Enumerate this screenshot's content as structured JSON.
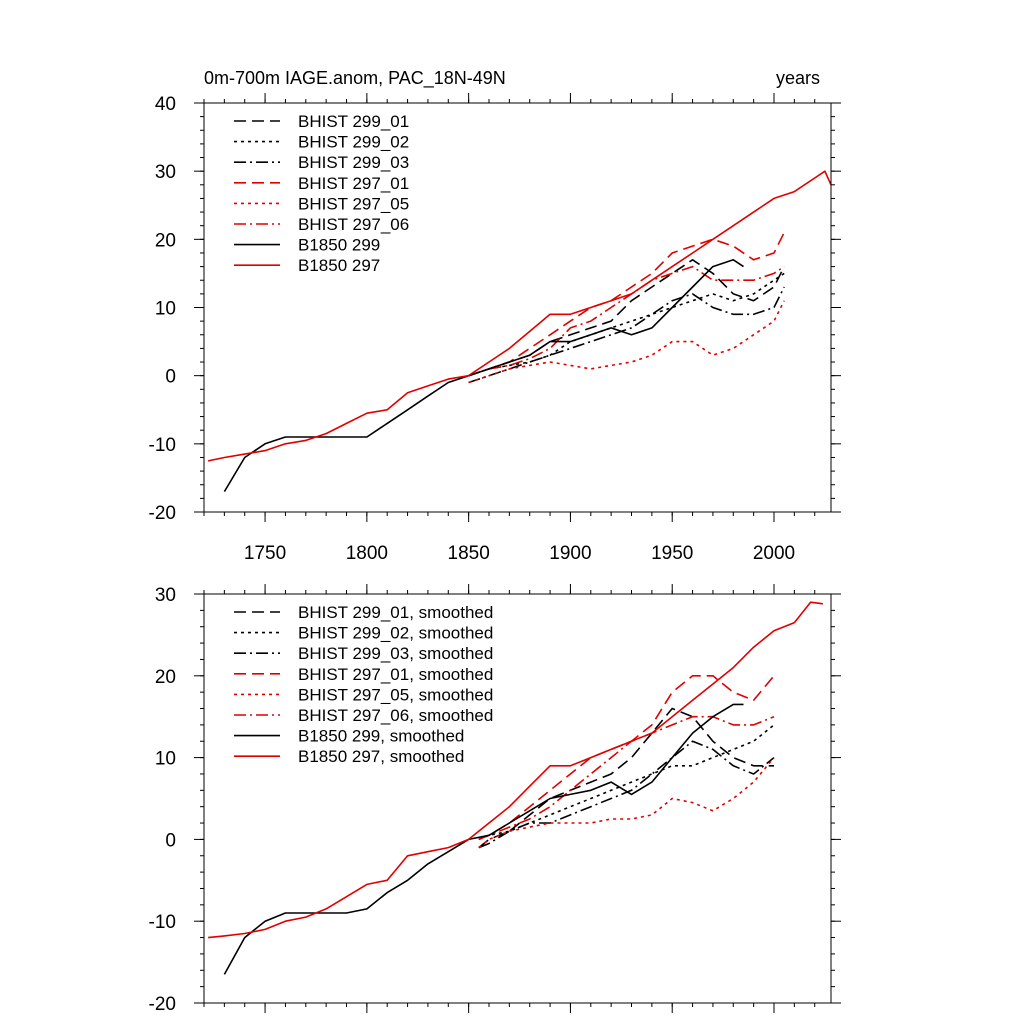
{
  "chart_data": [
    {
      "type": "line",
      "title": "0m-700m IAGE.anom, PAC_18N-49N",
      "right_title": "years",
      "xlim": [
        1720,
        2028
      ],
      "ylim": [
        -20,
        40
      ],
      "x_ticks": [
        1750,
        1800,
        1850,
        1900,
        1950,
        2000
      ],
      "x_tick_labels": [
        "1750",
        "1800",
        "1850",
        "1900",
        "1950",
        "2000"
      ],
      "y_ticks": [
        -20,
        -10,
        0,
        10,
        20,
        30,
        40
      ],
      "y_tick_labels": [
        "-20",
        "-10",
        "0",
        "10",
        "20",
        "30",
        "40"
      ],
      "legend_position": "top-left",
      "series": [
        {
          "name": "BHIST 299_01",
          "color": "#000000",
          "dash": "dashed",
          "x": [
            1850,
            1860,
            1870,
            1880,
            1890,
            1900,
            1910,
            1920,
            1930,
            1940,
            1950,
            1960,
            1970,
            1980,
            1990,
            2000,
            2005
          ],
          "y": [
            0,
            1,
            2,
            3,
            5,
            6,
            7,
            8,
            11,
            13,
            15,
            17,
            15,
            12,
            11,
            13,
            16
          ]
        },
        {
          "name": "BHIST 299_02",
          "color": "#000000",
          "dash": "dotted",
          "x": [
            1850,
            1860,
            1870,
            1880,
            1890,
            1900,
            1910,
            1920,
            1930,
            1940,
            1950,
            1960,
            1970,
            1980,
            1990,
            2000,
            2005
          ],
          "y": [
            0,
            1,
            1.5,
            2,
            3,
            5,
            6,
            7,
            8,
            9,
            10,
            11,
            12,
            11,
            12,
            14,
            15
          ]
        },
        {
          "name": "BHIST 299_03",
          "color": "#000000",
          "dash": "dashdot",
          "x": [
            1850,
            1860,
            1870,
            1880,
            1890,
            1900,
            1910,
            1920,
            1930,
            1940,
            1950,
            1960,
            1970,
            1980,
            1990,
            2000,
            2005
          ],
          "y": [
            -1,
            0,
            1,
            2,
            3,
            4,
            5,
            6,
            7,
            9,
            11,
            12,
            10,
            9,
            9,
            10,
            13
          ]
        },
        {
          "name": "BHIST 297_01",
          "color": "#e00000",
          "dash": "dashed",
          "x": [
            1850,
            1860,
            1870,
            1880,
            1890,
            1900,
            1910,
            1920,
            1930,
            1940,
            1950,
            1960,
            1970,
            1980,
            1990,
            2000,
            2005
          ],
          "y": [
            0,
            1,
            2,
            4,
            6,
            8,
            10,
            11,
            13,
            15,
            18,
            19,
            20,
            19,
            17,
            18,
            21
          ]
        },
        {
          "name": "BHIST 297_05",
          "color": "#e00000",
          "dash": "dotted",
          "x": [
            1850,
            1860,
            1870,
            1880,
            1890,
            1900,
            1910,
            1920,
            1930,
            1940,
            1950,
            1960,
            1970,
            1980,
            1990,
            2000,
            2005
          ],
          "y": [
            -1,
            0,
            1,
            1.5,
            2,
            1.5,
            1,
            1.5,
            2,
            3,
            5,
            5,
            3,
            4,
            6,
            8,
            11
          ]
        },
        {
          "name": "BHIST 297_06",
          "color": "#e00000",
          "dash": "dashdot",
          "x": [
            1850,
            1860,
            1870,
            1880,
            1890,
            1900,
            1910,
            1920,
            1930,
            1940,
            1950,
            1960,
            1970,
            1980,
            1990,
            2000,
            2005
          ],
          "y": [
            0,
            1,
            1.5,
            2.5,
            4,
            7,
            8,
            10,
            12,
            14,
            15,
            16,
            14,
            14,
            14,
            15,
            16
          ]
        },
        {
          "name": "B1850 299",
          "color": "#000000",
          "dash": "solid",
          "x": [
            1730,
            1740,
            1750,
            1760,
            1770,
            1780,
            1790,
            1800,
            1810,
            1820,
            1830,
            1840,
            1850,
            1860,
            1870,
            1880,
            1890,
            1900,
            1910,
            1920,
            1930,
            1940,
            1950,
            1960,
            1970,
            1980,
            1985
          ],
          "y": [
            -17,
            -12,
            -10,
            -9,
            -9,
            -9,
            -9,
            -9,
            -7,
            -5,
            -3,
            -1,
            0,
            1,
            2,
            3,
            5,
            5,
            6,
            7,
            6,
            7,
            10,
            13,
            16,
            17,
            16
          ]
        },
        {
          "name": "B1850 297",
          "color": "#e00000",
          "dash": "solid",
          "x": [
            1722,
            1730,
            1740,
            1750,
            1760,
            1770,
            1780,
            1790,
            1800,
            1810,
            1820,
            1830,
            1840,
            1850,
            1860,
            1870,
            1880,
            1890,
            1900,
            1910,
            1920,
            1930,
            1940,
            1950,
            1960,
            1970,
            1980,
            1990,
            2000,
            2010,
            2020,
            2025,
            2028
          ],
          "y": [
            -12.5,
            -12,
            -11.5,
            -11,
            -10,
            -9.5,
            -8.5,
            -7,
            -5.5,
            -5,
            -2.5,
            -1.5,
            -0.5,
            0,
            2,
            4,
            6.5,
            9,
            9,
            10,
            11,
            12,
            14,
            16,
            18,
            20,
            22,
            24,
            26,
            27,
            29,
            30,
            28
          ]
        }
      ]
    },
    {
      "type": "line",
      "title": "",
      "xlim": [
        1720,
        2028
      ],
      "ylim": [
        -20,
        30
      ],
      "x_ticks": [
        1750,
        1800,
        1850,
        1900,
        1950,
        2000
      ],
      "y_ticks": [
        -20,
        -10,
        0,
        10,
        20,
        30
      ],
      "y_tick_labels": [
        "-20",
        "-10",
        "0",
        "10",
        "20",
        "30"
      ],
      "legend_position": "top-left",
      "series": [
        {
          "name": "BHIST 299_01, smoothed",
          "color": "#000000",
          "dash": "dashed",
          "x": [
            1855,
            1860,
            1870,
            1880,
            1890,
            1900,
            1910,
            1920,
            1930,
            1940,
            1950,
            1960,
            1970,
            1980,
            1990,
            2000
          ],
          "y": [
            -1,
            0,
            1,
            3,
            5,
            6,
            7,
            8,
            10,
            13,
            16,
            15,
            12,
            10,
            9,
            9
          ]
        },
        {
          "name": "BHIST 299_02, smoothed",
          "color": "#000000",
          "dash": "dotted",
          "x": [
            1855,
            1860,
            1870,
            1880,
            1890,
            1900,
            1910,
            1920,
            1930,
            1940,
            1950,
            1960,
            1970,
            1980,
            1990,
            2000
          ],
          "y": [
            0,
            0.5,
            1,
            2,
            3,
            4,
            5,
            6,
            7,
            8,
            9,
            9,
            10,
            11,
            12,
            14
          ]
        },
        {
          "name": "BHIST 299_03, smoothed",
          "color": "#000000",
          "dash": "dashdot",
          "x": [
            1855,
            1860,
            1870,
            1880,
            1890,
            1900,
            1910,
            1920,
            1930,
            1940,
            1950,
            1960,
            1970,
            1980,
            1990,
            2000
          ],
          "y": [
            -1,
            -0.5,
            1,
            2,
            2,
            3,
            4,
            5,
            6,
            8,
            10,
            12,
            11,
            9,
            8,
            10
          ]
        },
        {
          "name": "BHIST 297_01, smoothed",
          "color": "#e00000",
          "dash": "dashed",
          "x": [
            1855,
            1860,
            1870,
            1880,
            1890,
            1900,
            1910,
            1920,
            1930,
            1940,
            1950,
            1960,
            1970,
            1980,
            1990,
            2000
          ],
          "y": [
            0,
            0.5,
            2,
            4,
            6,
            8,
            10,
            11,
            12,
            14,
            18,
            20,
            20,
            18,
            17,
            20
          ]
        },
        {
          "name": "BHIST 297_05, smoothed",
          "color": "#e00000",
          "dash": "dotted",
          "x": [
            1855,
            1860,
            1870,
            1880,
            1890,
            1900,
            1910,
            1920,
            1930,
            1940,
            1950,
            1960,
            1970,
            1980,
            1990,
            2000
          ],
          "y": [
            -1,
            0,
            1,
            1.5,
            2,
            2,
            2,
            2.5,
            2.5,
            3,
            5,
            4.5,
            3.5,
            5,
            7,
            10
          ]
        },
        {
          "name": "BHIST 297_06, smoothed",
          "color": "#e00000",
          "dash": "dashdot",
          "x": [
            1855,
            1860,
            1870,
            1880,
            1890,
            1900,
            1910,
            1920,
            1930,
            1940,
            1950,
            1960,
            1970,
            1980,
            1990,
            2000
          ],
          "y": [
            0,
            0.5,
            1.5,
            2.5,
            4,
            6,
            8,
            10,
            12,
            13,
            14,
            15,
            15,
            14,
            14,
            15
          ]
        },
        {
          "name": "B1850 299, smoothed",
          "color": "#000000",
          "dash": "solid",
          "x": [
            1730,
            1740,
            1750,
            1760,
            1770,
            1780,
            1790,
            1800,
            1810,
            1820,
            1830,
            1840,
            1850,
            1860,
            1870,
            1880,
            1890,
            1900,
            1910,
            1920,
            1930,
            1940,
            1950,
            1960,
            1970,
            1980,
            1985
          ],
          "y": [
            -16.5,
            -12,
            -10,
            -9,
            -9,
            -9,
            -9,
            -8.5,
            -6.5,
            -5,
            -3,
            -1.5,
            0,
            0.5,
            2,
            3.5,
            5,
            5.5,
            6,
            7,
            5.5,
            7,
            10,
            13,
            15,
            16.5,
            16.5
          ]
        },
        {
          "name": "B1850 297, smoothed",
          "color": "#e00000",
          "dash": "solid",
          "x": [
            1722,
            1730,
            1740,
            1750,
            1760,
            1770,
            1780,
            1790,
            1800,
            1810,
            1820,
            1830,
            1840,
            1850,
            1860,
            1870,
            1880,
            1890,
            1900,
            1910,
            1920,
            1930,
            1940,
            1950,
            1960,
            1970,
            1980,
            1990,
            2000,
            2010,
            2018,
            2024
          ],
          "y": [
            -12,
            -11.8,
            -11.5,
            -11,
            -10,
            -9.5,
            -8.5,
            -7,
            -5.5,
            -5,
            -2,
            -1.5,
            -1,
            0,
            2,
            4,
            6.5,
            9,
            9,
            10,
            11,
            12,
            13,
            15,
            17,
            19,
            21,
            23.5,
            25.5,
            26.5,
            29,
            28.8
          ]
        }
      ]
    }
  ]
}
